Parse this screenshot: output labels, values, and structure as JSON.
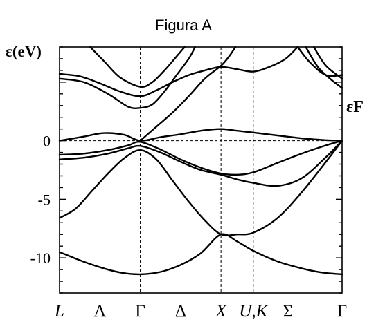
{
  "title": "Figura A",
  "chart_data": {
    "type": "line",
    "title": "Figura A",
    "ylabel": "ε(eV)",
    "fermi_label": "εF",
    "fermi_level": 0,
    "ylim": [
      -13,
      8
    ],
    "y_ticks": [
      0,
      -5,
      -10
    ],
    "y_tick_labels": [
      "0",
      "-5",
      "-10"
    ],
    "k_points": [
      {
        "label": "L",
        "x": 0
      },
      {
        "label": "Λ",
        "x": 0.5
      },
      {
        "label": "Γ",
        "x": 1
      },
      {
        "label": "Δ",
        "x": 1.5
      },
      {
        "label": "X",
        "x": 2
      },
      {
        "label": "U,K",
        "x": 2.4
      },
      {
        "label": "Σ",
        "x": 2.83
      },
      {
        "label": "Γ",
        "x": 3.5
      }
    ],
    "vertical_lines_at": [
      1,
      2,
      2.4
    ],
    "xlim": [
      0,
      3.5
    ],
    "series": [
      {
        "values": [
          [
            0,
            -9.5
          ],
          [
            0.25,
            -10.2
          ],
          [
            0.5,
            -10.8
          ],
          [
            0.75,
            -11.25
          ],
          [
            1,
            -11.4
          ],
          [
            1.25,
            -11.2
          ],
          [
            1.5,
            -10.6
          ],
          [
            1.75,
            -9.6
          ],
          [
            2,
            -8.0
          ],
          [
            2.2,
            -8.6
          ],
          [
            2.4,
            -9.4
          ],
          [
            2.7,
            -10.3
          ],
          [
            3.0,
            -10.9
          ],
          [
            3.25,
            -11.25
          ],
          [
            3.5,
            -11.4
          ]
        ]
      },
      {
        "values": [
          [
            0,
            -6.6
          ],
          [
            0.2,
            -5.8
          ],
          [
            0.4,
            -4.3
          ],
          [
            0.6,
            -2.8
          ],
          [
            0.8,
            -1.5
          ],
          [
            1,
            -0.8
          ],
          [
            1.2,
            -1.6
          ],
          [
            1.4,
            -3.4
          ],
          [
            1.6,
            -5.2
          ],
          [
            1.8,
            -6.8
          ],
          [
            2,
            -8.0
          ],
          [
            2.2,
            -8.0
          ],
          [
            2.4,
            -7.85
          ],
          [
            2.7,
            -6.6
          ],
          [
            3.0,
            -4.4
          ],
          [
            3.3,
            -1.8
          ],
          [
            3.5,
            0
          ]
        ]
      },
      {
        "values": [
          [
            0,
            -1.6
          ],
          [
            0.3,
            -1.45
          ],
          [
            0.6,
            -1.1
          ],
          [
            0.85,
            -0.65
          ],
          [
            1,
            -0.45
          ],
          [
            1.25,
            -1.0
          ],
          [
            1.5,
            -1.8
          ],
          [
            1.75,
            -2.5
          ],
          [
            2,
            -2.9
          ],
          [
            2.2,
            -3.3
          ],
          [
            2.4,
            -3.6
          ],
          [
            2.7,
            -3.85
          ],
          [
            3.0,
            -3.2
          ],
          [
            3.3,
            -1.4
          ],
          [
            3.5,
            0
          ]
        ]
      },
      {
        "values": [
          [
            0,
            -1.2
          ],
          [
            0.3,
            -1.1
          ],
          [
            0.6,
            -0.8
          ],
          [
            0.85,
            -0.4
          ],
          [
            1,
            -0.1
          ],
          [
            1.25,
            -0.75
          ],
          [
            1.5,
            -1.6
          ],
          [
            1.75,
            -2.3
          ],
          [
            2,
            -2.8
          ],
          [
            2.2,
            -2.9
          ],
          [
            2.4,
            -2.7
          ],
          [
            2.7,
            -1.9
          ],
          [
            3.0,
            -1.1
          ],
          [
            3.3,
            -0.4
          ],
          [
            3.5,
            0
          ]
        ]
      },
      {
        "values": [
          [
            0,
            0
          ],
          [
            0.3,
            0.35
          ],
          [
            0.55,
            0.65
          ],
          [
            0.8,
            0.5
          ],
          [
            1,
            0
          ],
          [
            1.25,
            0.3
          ],
          [
            1.5,
            0.55
          ],
          [
            1.75,
            0.85
          ],
          [
            2,
            1.0
          ],
          [
            2.2,
            0.85
          ],
          [
            2.4,
            0.7
          ],
          [
            2.7,
            0.45
          ],
          [
            3.0,
            0.2
          ],
          [
            3.3,
            0.05
          ],
          [
            3.5,
            0
          ]
        ]
      },
      {
        "values": [
          [
            1,
            0
          ],
          [
            1.2,
            1.2
          ],
          [
            1.4,
            2.4
          ],
          [
            1.6,
            3.8
          ],
          [
            1.8,
            5.3
          ],
          [
            2,
            6.4
          ],
          [
            2.1,
            7.2
          ],
          [
            2.18,
            8.0
          ]
        ]
      },
      {
        "values": [
          [
            0,
            5.7
          ],
          [
            0.25,
            5.5
          ],
          [
            0.5,
            4.9
          ],
          [
            0.75,
            4.2
          ],
          [
            1,
            3.8
          ],
          [
            1.2,
            4.3
          ],
          [
            1.4,
            5.0
          ],
          [
            1.6,
            5.6
          ],
          [
            1.8,
            6.0
          ],
          [
            2,
            6.3
          ],
          [
            2.2,
            6.1
          ],
          [
            2.4,
            5.9
          ],
          [
            2.6,
            6.3
          ],
          [
            2.8,
            7.0
          ],
          [
            2.95,
            8.0
          ]
        ]
      },
      {
        "values": [
          [
            0,
            5.3
          ],
          [
            0.3,
            5.0
          ],
          [
            0.6,
            4.0
          ],
          [
            0.85,
            2.9
          ],
          [
            1,
            2.8
          ],
          [
            1.15,
            3.1
          ],
          [
            1.3,
            4.2
          ],
          [
            1.45,
            5.6
          ],
          [
            1.6,
            7.0
          ],
          [
            1.68,
            8.0
          ]
        ]
      },
      {
        "values": [
          [
            0.38,
            8.0
          ],
          [
            0.55,
            6.8
          ],
          [
            0.75,
            5.4
          ],
          [
            1,
            4.6
          ],
          [
            1.15,
            5.0
          ],
          [
            1.3,
            6.0
          ],
          [
            1.45,
            7.2
          ],
          [
            1.55,
            8.0
          ]
        ]
      },
      {
        "values": [
          [
            3.05,
            8.0
          ],
          [
            3.2,
            6.3
          ],
          [
            3.35,
            5.3
          ],
          [
            3.5,
            4.5
          ]
        ]
      },
      {
        "values": [
          [
            3.15,
            8.0
          ],
          [
            3.3,
            6.4
          ],
          [
            3.5,
            5.3
          ]
        ]
      },
      {
        "values": [
          [
            2.95,
            8.0
          ],
          [
            3.1,
            6.7
          ],
          [
            3.3,
            5.6
          ],
          [
            3.5,
            5.6
          ]
        ]
      }
    ]
  }
}
